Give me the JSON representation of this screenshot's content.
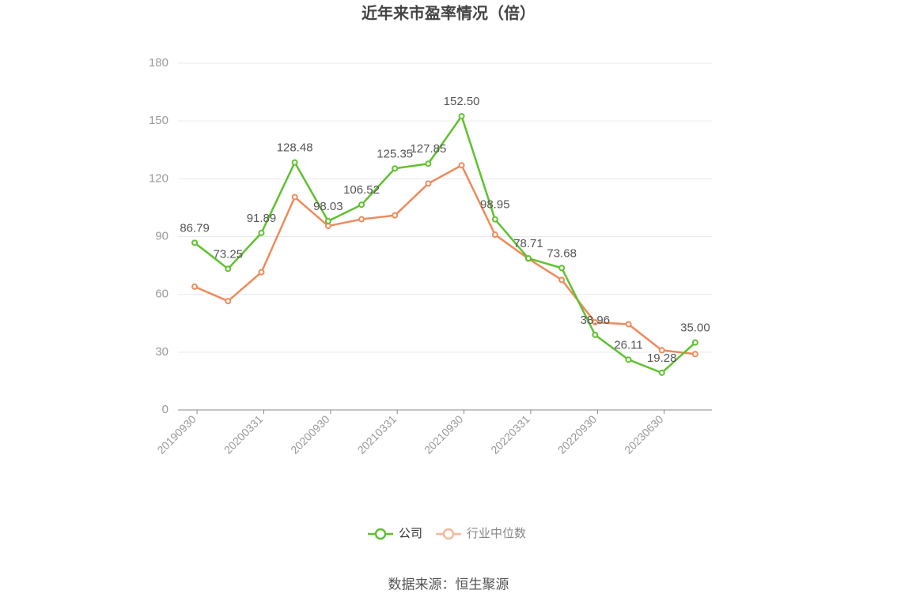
{
  "chart_data": {
    "type": "line",
    "title": "近年来市盈率情况（倍）",
    "categories": [
      "20190930",
      null,
      "20200331",
      null,
      "20200930",
      null,
      "20210331",
      null,
      "20210930",
      null,
      "20220331",
      null,
      "20220930",
      null,
      "20230630",
      null
    ],
    "series": [
      {
        "name": "公司",
        "color": "#5ec12f",
        "values": [
          86.79,
          73.25,
          91.89,
          128.48,
          98.03,
          106.52,
          125.35,
          127.85,
          152.5,
          98.95,
          78.71,
          73.68,
          38.96,
          26.11,
          19.28,
          35.0
        ],
        "value_labels": [
          "86.79",
          "73.25",
          "91.89",
          "128.48",
          "98.03",
          "106.52",
          "125.35",
          "127.85",
          "152.50",
          "98.95",
          "78.71",
          "73.68",
          "38.96",
          "26.11",
          "19.28",
          "35.00"
        ]
      },
      {
        "name": "行业中位数",
        "color": "#ee8b5b",
        "values": [
          64,
          56.5,
          71.5,
          110.5,
          95.5,
          99,
          101,
          117.5,
          127,
          91,
          78.5,
          67.5,
          45.5,
          44.5,
          31,
          29
        ]
      }
    ],
    "ylim": [
      0,
      180
    ],
    "yticks": [
      0,
      30,
      60,
      90,
      120,
      150,
      180
    ],
    "grid": true,
    "legend": "bottom",
    "source": "数据来源：恒生聚源"
  }
}
